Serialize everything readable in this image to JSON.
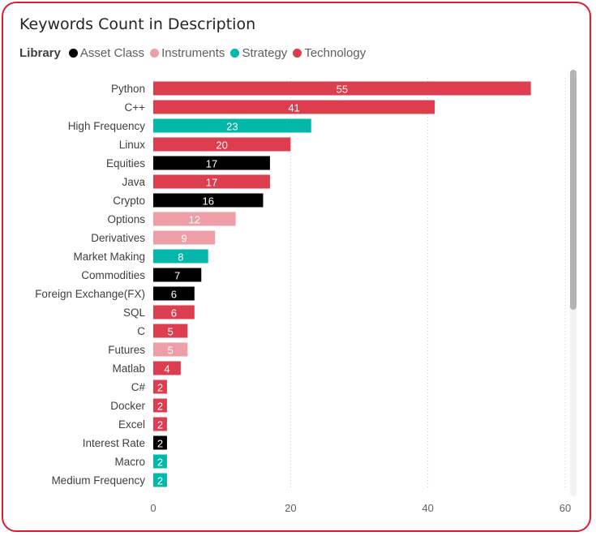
{
  "chart_data": {
    "type": "bar",
    "orientation": "horizontal",
    "title": "Keywords Count in Description",
    "legend_title": "Library",
    "legend_position": "top-left",
    "legend": [
      {
        "name": "Asset Class",
        "color": "#000000"
      },
      {
        "name": "Instruments",
        "color": "#ee9ea6"
      },
      {
        "name": "Strategy",
        "color": "#01b8aa"
      },
      {
        "name": "Technology",
        "color": "#dd3e4f"
      }
    ],
    "categories": [
      "Python",
      "C++",
      "High Frequency",
      "Linux",
      "Equities",
      "Java",
      "Crypto",
      "Options",
      "Derivatives",
      "Market Making",
      "Commodities",
      "Foreign Exchange(FX)",
      "SQL",
      "C",
      "Futures",
      "Matlab",
      "C#",
      "Docker",
      "Excel",
      "Interest Rate",
      "Macro",
      "Medium Frequency"
    ],
    "values": [
      55,
      41,
      23,
      20,
      17,
      17,
      16,
      12,
      9,
      8,
      7,
      6,
      6,
      5,
      5,
      4,
      2,
      2,
      2,
      2,
      2,
      2
    ],
    "groups": [
      "Technology",
      "Technology",
      "Strategy",
      "Technology",
      "Asset Class",
      "Technology",
      "Asset Class",
      "Instruments",
      "Instruments",
      "Strategy",
      "Asset Class",
      "Asset Class",
      "Technology",
      "Technology",
      "Instruments",
      "Technology",
      "Technology",
      "Technology",
      "Technology",
      "Asset Class",
      "Strategy",
      "Strategy"
    ],
    "xlim": [
      0,
      60
    ],
    "xticks": [
      "0",
      "20",
      "40",
      "60"
    ],
    "grid": "vertical dotted"
  }
}
